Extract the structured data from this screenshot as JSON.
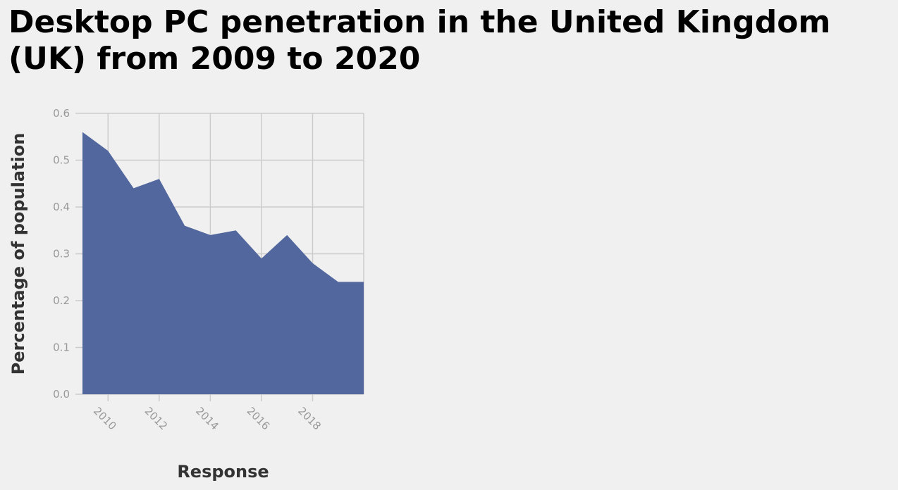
{
  "chart_data": {
    "type": "area",
    "title": "Desktop PC penetration in the United Kingdom (UK) from 2009 to 2020",
    "xlabel": "Response",
    "ylabel": "Percentage of population",
    "x": [
      2009,
      2010,
      2011,
      2012,
      2013,
      2014,
      2015,
      2016,
      2017,
      2018,
      2019,
      2020
    ],
    "series": [
      {
        "values": [
          0.56,
          0.52,
          0.44,
          0.46,
          0.36,
          0.34,
          0.35,
          0.29,
          0.34,
          0.28,
          0.24,
          0.24
        ]
      }
    ],
    "xlim": [
      2009,
      2020
    ],
    "ylim": [
      0,
      0.6
    ],
    "xticks": [
      2010,
      2012,
      2014,
      2016,
      2018
    ],
    "xtick_labels": [
      "2010",
      "2012",
      "2014",
      "2016",
      "2018"
    ],
    "yticks": [
      0,
      0.1,
      0.2,
      0.3,
      0.4,
      0.5,
      0.6
    ],
    "ytick_labels": [
      "0.0",
      "0.1",
      "0.2",
      "0.3",
      "0.4",
      "0.5",
      "0.6"
    ],
    "grid": true,
    "legend": "none",
    "colors": {
      "fill": "#52679e",
      "grid": "#cccccc",
      "background": "#f0f0f0"
    }
  }
}
